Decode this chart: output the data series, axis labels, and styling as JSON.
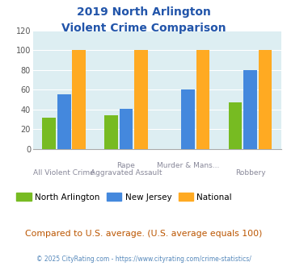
{
  "title_line1": "2019 North Arlington",
  "title_line2": "Violent Crime Comparison",
  "title_color": "#2255aa",
  "cat_labels_row1": [
    "",
    "Rape",
    "Murder & Mans...",
    ""
  ],
  "cat_labels_row2": [
    "All Violent Crime",
    "Aggravated Assault",
    "",
    "Robbery"
  ],
  "north_arlington": [
    32,
    34,
    0,
    47
  ],
  "new_jersey": [
    55,
    41,
    60,
    80
  ],
  "national": [
    100,
    100,
    100,
    100
  ],
  "color_na": "#77bb22",
  "color_nj": "#4488dd",
  "color_nat": "#ffaa22",
  "ylim": [
    0,
    120
  ],
  "yticks": [
    0,
    20,
    40,
    60,
    80,
    100,
    120
  ],
  "bg_color": "#ddeef2",
  "legend_labels": [
    "North Arlington",
    "New Jersey",
    "National"
  ],
  "note": "Compared to U.S. average. (U.S. average equals 100)",
  "note_color": "#bb5500",
  "footer": "© 2025 CityRating.com - https://www.cityrating.com/crime-statistics/",
  "footer_color": "#5588bb"
}
